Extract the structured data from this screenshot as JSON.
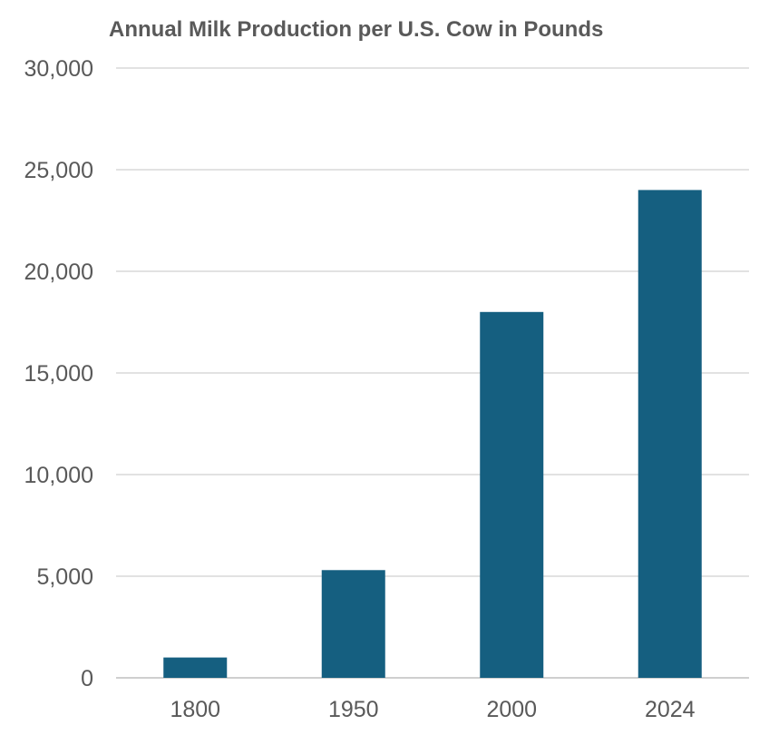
{
  "chart_data": {
    "type": "bar",
    "title": "Annual Milk Production per U.S. Cow in Pounds",
    "xlabel": "",
    "ylabel": "",
    "categories": [
      "1800",
      "1950",
      "2000",
      "2024"
    ],
    "values": [
      1000,
      5300,
      18000,
      24000
    ],
    "ylim": [
      0,
      30000
    ],
    "yticks": [
      0,
      5000,
      10000,
      15000,
      20000,
      25000,
      30000
    ],
    "ytick_labels": [
      "0",
      "5,000",
      "10,000",
      "15,000",
      "20,000",
      "25,000",
      "30,000"
    ],
    "grid": true,
    "legend": "none",
    "bar_color": "#155f80"
  }
}
